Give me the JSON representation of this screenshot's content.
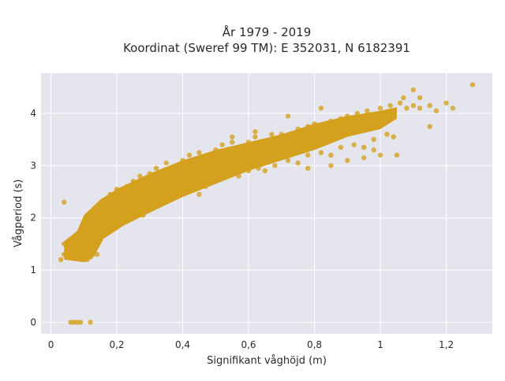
{
  "chart_data": {
    "type": "scatter",
    "title": [
      "År 1979 - 2019",
      "Koordinat (Sweref 99 TM): E 352031, N 6182391"
    ],
    "xlabel": "Signifikant våghöjd (m)",
    "ylabel": "Vågperiod (s)",
    "xlim": [
      -0.03,
      1.34
    ],
    "ylim": [
      -0.22,
      4.77
    ],
    "xticks": [
      0,
      0.2,
      0.4,
      0.6,
      0.8,
      1,
      1.2
    ],
    "xtick_labels": [
      "0",
      "0,2",
      "0,4",
      "0,6",
      "0,8",
      "1",
      "1,2"
    ],
    "yticks": [
      0,
      1,
      2,
      3,
      4
    ],
    "ytick_labels": [
      "0",
      "1",
      "2",
      "3",
      "4"
    ],
    "grid": true,
    "background": "#e5e5ee",
    "marker_color": "#d4a11e",
    "marker_opacity": 0.8,
    "series": [
      {
        "points": [
          [
            0.06,
            0.0
          ],
          [
            0.07,
            0.0
          ],
          [
            0.08,
            0.0
          ],
          [
            0.09,
            0.0
          ],
          [
            0.12,
            0.0
          ],
          [
            0.04,
            2.3
          ],
          [
            0.03,
            1.2
          ],
          [
            0.04,
            1.3
          ],
          [
            0.05,
            1.25
          ],
          [
            0.06,
            1.45
          ],
          [
            0.04,
            1.5
          ],
          [
            0.07,
            1.55
          ],
          [
            0.05,
            1.35
          ],
          [
            0.08,
            1.6
          ],
          [
            0.09,
            1.4
          ],
          [
            0.1,
            1.3
          ],
          [
            0.11,
            1.2
          ],
          [
            0.12,
            1.25
          ],
          [
            0.14,
            1.3
          ],
          [
            0.1,
            1.75
          ],
          [
            0.12,
            1.95
          ],
          [
            0.13,
            2.15
          ],
          [
            0.15,
            2.05
          ],
          [
            0.16,
            2.3
          ],
          [
            0.18,
            2.45
          ],
          [
            0.2,
            2.55
          ],
          [
            0.17,
            1.8
          ],
          [
            0.19,
            2.0
          ],
          [
            0.21,
            2.1
          ],
          [
            0.23,
            2.6
          ],
          [
            0.25,
            2.7
          ],
          [
            0.27,
            2.8
          ],
          [
            0.24,
            2.25
          ],
          [
            0.26,
            2.35
          ],
          [
            0.28,
            2.2
          ],
          [
            0.3,
            2.85
          ],
          [
            0.32,
            2.95
          ],
          [
            0.35,
            3.05
          ],
          [
            0.31,
            2.4
          ],
          [
            0.34,
            2.5
          ],
          [
            0.37,
            2.45
          ],
          [
            0.4,
            3.1
          ],
          [
            0.42,
            3.2
          ],
          [
            0.45,
            3.25
          ],
          [
            0.4,
            2.55
          ],
          [
            0.43,
            2.65
          ],
          [
            0.47,
            2.6
          ],
          [
            0.5,
            3.3
          ],
          [
            0.52,
            3.4
          ],
          [
            0.55,
            3.45
          ],
          [
            0.5,
            2.75
          ],
          [
            0.53,
            2.85
          ],
          [
            0.57,
            2.8
          ],
          [
            0.6,
            3.45
          ],
          [
            0.62,
            3.55
          ],
          [
            0.6,
            2.9
          ],
          [
            0.63,
            2.95
          ],
          [
            0.65,
            2.9
          ],
          [
            0.67,
            3.6
          ],
          [
            0.7,
            3.6
          ],
          [
            0.68,
            3.0
          ],
          [
            0.72,
            3.1
          ],
          [
            0.75,
            3.05
          ],
          [
            0.75,
            3.7
          ],
          [
            0.78,
            3.75
          ],
          [
            0.8,
            3.8
          ],
          [
            0.78,
            3.2
          ],
          [
            0.82,
            3.25
          ],
          [
            0.85,
            3.2
          ],
          [
            0.85,
            3.85
          ],
          [
            0.88,
            3.9
          ],
          [
            0.9,
            3.95
          ],
          [
            0.88,
            3.35
          ],
          [
            0.92,
            3.4
          ],
          [
            0.95,
            3.35
          ],
          [
            0.93,
            4.0
          ],
          [
            0.96,
            4.05
          ],
          [
            1.0,
            4.1
          ],
          [
            0.98,
            3.5
          ],
          [
            1.02,
            3.6
          ],
          [
            1.04,
            3.55
          ],
          [
            1.03,
            4.15
          ],
          [
            1.06,
            4.2
          ],
          [
            1.08,
            4.1
          ],
          [
            1.1,
            4.15
          ],
          [
            1.12,
            4.1
          ],
          [
            1.15,
            4.15
          ],
          [
            1.17,
            4.05
          ],
          [
            1.2,
            4.2
          ],
          [
            1.22,
            4.1
          ],
          [
            1.1,
            4.45
          ],
          [
            1.15,
            3.75
          ],
          [
            1.28,
            4.55
          ],
          [
            1.05,
            3.2
          ],
          [
            1.0,
            3.2
          ],
          [
            0.95,
            3.15
          ],
          [
            0.85,
            3.0
          ],
          [
            0.78,
            2.95
          ],
          [
            0.82,
            4.1
          ],
          [
            0.72,
            3.95
          ],
          [
            0.62,
            3.65
          ],
          [
            0.55,
            3.55
          ],
          [
            0.9,
            3.1
          ],
          [
            0.98,
            3.3
          ],
          [
            1.07,
            4.3
          ],
          [
            1.12,
            4.3
          ],
          [
            0.35,
            2.35
          ],
          [
            0.22,
            1.95
          ],
          [
            0.15,
            1.7
          ],
          [
            0.18,
            1.85
          ],
          [
            0.28,
            2.05
          ],
          [
            0.45,
            2.45
          ],
          [
            0.65,
            3.25
          ],
          [
            0.7,
            3.35
          ]
        ]
      }
    ]
  }
}
